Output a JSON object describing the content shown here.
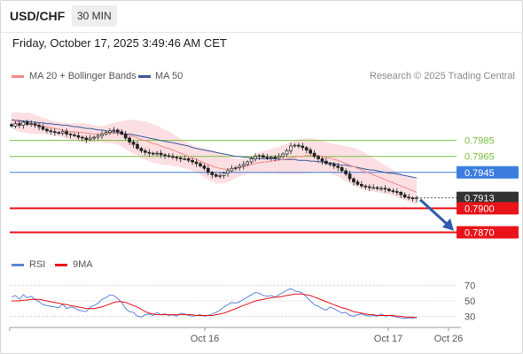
{
  "header": {
    "pair": "USD/CHF",
    "timeframe": "30 MIN",
    "date": "Friday, October 17, 2025 3:49:46 AM CET"
  },
  "legend": {
    "ma20_label": "MA 20 + Bollinger Bands",
    "ma50_label": "MA 50",
    "rsi_label": "RSI",
    "ma9_label": "9MA",
    "copyright": "Research © 2025 Trading Central"
  },
  "colors": {
    "ma20": "#f28c8c",
    "ma50": "#3d5a99",
    "band": "#fcd9dd",
    "resistance": "#7ac142",
    "pivot": "#3d7de0",
    "support": "#e8141a",
    "arrow": "#2f5ba8",
    "rsi": "#5b85d8",
    "rsi_ma": "#e8141a"
  },
  "chart_data": [
    {
      "type": "candlestick",
      "ylim": [
        0.7845,
        0.805
      ],
      "levels": [
        {
          "label": "0.7985",
          "value": 0.7985,
          "kind": "resistance"
        },
        {
          "label": "0.7965",
          "value": 0.7965,
          "kind": "resistance"
        },
        {
          "label": "0.7945",
          "value": 0.7945,
          "kind": "pivot"
        },
        {
          "label": "0.7913",
          "value": 0.7913,
          "kind": "last"
        },
        {
          "label": "0.7900",
          "value": 0.79,
          "kind": "support"
        },
        {
          "label": "0.7870",
          "value": 0.787,
          "kind": "support"
        }
      ],
      "x_ticks": [
        "Oct 16",
        "Oct 17",
        "Oct 26"
      ],
      "closes": [
        0.8003,
        0.8006,
        0.8004,
        0.8008,
        0.8005,
        0.8006,
        0.8004,
        0.8002,
        0.7999,
        0.7997,
        0.7996,
        0.7995,
        0.7994,
        0.7996,
        0.7993,
        0.7992,
        0.7991,
        0.7989,
        0.7988,
        0.7986,
        0.7988,
        0.7989,
        0.7991,
        0.7993,
        0.7995,
        0.7997,
        0.7998,
        0.7996,
        0.7993,
        0.7988,
        0.7983,
        0.798,
        0.7975,
        0.7972,
        0.797,
        0.7969,
        0.7968,
        0.7969,
        0.7967,
        0.7966,
        0.7965,
        0.7964,
        0.7963,
        0.7962,
        0.7962,
        0.796,
        0.7958,
        0.7956,
        0.7953,
        0.795,
        0.7945,
        0.7942,
        0.794,
        0.7941,
        0.7944,
        0.7947,
        0.795,
        0.7951,
        0.7953,
        0.7955,
        0.7958,
        0.7962,
        0.7965,
        0.7966,
        0.7964,
        0.7963,
        0.7964,
        0.7963,
        0.7965,
        0.7968,
        0.7972,
        0.7978,
        0.7979,
        0.7978,
        0.7976,
        0.7973,
        0.7969,
        0.7965,
        0.7962,
        0.7959,
        0.7956,
        0.7955,
        0.7953,
        0.7951,
        0.7947,
        0.7943,
        0.7937,
        0.7933,
        0.793,
        0.7928,
        0.7927,
        0.7926,
        0.7926,
        0.7925,
        0.7925,
        0.7924,
        0.7922,
        0.7921,
        0.792,
        0.7917,
        0.7914,
        0.7913,
        0.7912,
        0.7913
      ],
      "ma20": [
        0.801,
        0.8009,
        0.8008,
        0.8007,
        0.8007,
        0.8006,
        0.8005,
        0.8004,
        0.8003,
        0.8002,
        0.8001,
        0.8,
        0.7999,
        0.7998,
        0.7997,
        0.7996,
        0.7996,
        0.7995,
        0.7995,
        0.7994,
        0.7994,
        0.7993,
        0.7993,
        0.7993,
        0.7993,
        0.7994,
        0.7994,
        0.7994,
        0.7993,
        0.7992,
        0.7991,
        0.799,
        0.7988,
        0.7986,
        0.7985,
        0.7983,
        0.7981,
        0.798,
        0.7978,
        0.7976,
        0.7975,
        0.7973,
        0.7971,
        0.7969,
        0.7967,
        0.7965,
        0.7963,
        0.7961,
        0.7959,
        0.7957,
        0.7955,
        0.7953,
        0.7951,
        0.795,
        0.7949,
        0.7949,
        0.7949,
        0.795,
        0.7951,
        0.7952,
        0.7953,
        0.7955,
        0.7956,
        0.7957,
        0.7958,
        0.7958,
        0.7959,
        0.796,
        0.796,
        0.7961,
        0.7962,
        0.7963,
        0.7964,
        0.7965,
        0.7965,
        0.7966,
        0.7966,
        0.7966,
        0.7966,
        0.7965,
        0.7964,
        0.7963,
        0.7961,
        0.796,
        0.7958,
        0.7956,
        0.7954,
        0.7952,
        0.795,
        0.7948,
        0.7946,
        0.7944,
        0.7942,
        0.794,
        0.7938,
        0.7936,
        0.7934,
        0.7932,
        0.793,
        0.7928,
        0.7926,
        0.7924,
        0.7922,
        0.792
      ],
      "ma50": [
        0.8011,
        0.801,
        0.801,
        0.8009,
        0.8009,
        0.8008,
        0.8008,
        0.8007,
        0.8007,
        0.8006,
        0.8006,
        0.8005,
        0.8005,
        0.8004,
        0.8004,
        0.8003,
        0.8002,
        0.8002,
        0.8001,
        0.8,
        0.8,
        0.7999,
        0.7998,
        0.7998,
        0.7997,
        0.7996,
        0.7996,
        0.7995,
        0.7994,
        0.7993,
        0.7993,
        0.7992,
        0.7991,
        0.799,
        0.7989,
        0.7988,
        0.7987,
        0.7986,
        0.7985,
        0.7984,
        0.7983,
        0.7982,
        0.7981,
        0.798,
        0.7979,
        0.7978,
        0.7976,
        0.7975,
        0.7974,
        0.7973,
        0.7972,
        0.7971,
        0.797,
        0.7969,
        0.7968,
        0.7967,
        0.7966,
        0.7965,
        0.7965,
        0.7964,
        0.7964,
        0.7963,
        0.7963,
        0.7962,
        0.7962,
        0.7962,
        0.7962,
        0.7962,
        0.7961,
        0.7961,
        0.7961,
        0.7961,
        0.7961,
        0.796,
        0.796,
        0.796,
        0.7959,
        0.7959,
        0.7958,
        0.7958,
        0.7957,
        0.7957,
        0.7956,
        0.7955,
        0.7954,
        0.7954,
        0.7953,
        0.7952,
        0.7951,
        0.795,
        0.7949,
        0.7948,
        0.7948,
        0.7947,
        0.7946,
        0.7945,
        0.7944,
        0.7944,
        0.7943,
        0.7942,
        0.7941,
        0.794,
        0.7939,
        0.7938
      ],
      "band_width": [
        0.001,
        0.0011,
        0.0012,
        0.0012,
        0.0013,
        0.0013,
        0.0012,
        0.0011,
        0.001,
        0.001,
        0.0009,
        0.0009,
        0.0009,
        0.0009,
        0.001,
        0.001,
        0.0011,
        0.0011,
        0.0012,
        0.0012,
        0.0011,
        0.0011,
        0.001,
        0.001,
        0.0011,
        0.0012,
        0.0013,
        0.0014,
        0.0016,
        0.0018,
        0.002,
        0.0021,
        0.0022,
        0.0023,
        0.0024,
        0.0024,
        0.0024,
        0.0024,
        0.0023,
        0.0022,
        0.0021,
        0.002,
        0.0019,
        0.0018,
        0.0017,
        0.0016,
        0.0016,
        0.0016,
        0.0017,
        0.0018,
        0.0019,
        0.002,
        0.002,
        0.0019,
        0.0018,
        0.0016,
        0.0014,
        0.0012,
        0.0011,
        0.001,
        0.001,
        0.0011,
        0.0012,
        0.0013,
        0.0014,
        0.0015,
        0.0015,
        0.0016,
        0.0017,
        0.0018,
        0.0019,
        0.002,
        0.0021,
        0.0022,
        0.0022,
        0.0022,
        0.0022,
        0.0021,
        0.002,
        0.002,
        0.0019,
        0.0019,
        0.0019,
        0.002,
        0.0021,
        0.0022,
        0.0023,
        0.0024,
        0.0024,
        0.0024,
        0.0023,
        0.0022,
        0.0021,
        0.002,
        0.0019,
        0.0018,
        0.0017,
        0.0016,
        0.0016,
        0.0016,
        0.0016,
        0.0016,
        0.0016,
        0.0016
      ]
    },
    {
      "type": "line",
      "name": "RSI",
      "y_ticks": [
        70,
        50,
        30
      ],
      "ylim": [
        20,
        80
      ],
      "rsi": [
        55,
        57,
        52,
        58,
        54,
        56,
        52,
        49,
        45,
        44,
        43,
        42,
        41,
        46,
        40,
        42,
        41,
        38,
        37,
        36,
        42,
        44,
        47,
        52,
        54,
        58,
        57,
        53,
        48,
        40,
        36,
        35,
        30,
        29,
        32,
        33,
        31,
        35,
        32,
        33,
        31,
        32,
        30,
        34,
        33,
        31,
        30,
        31,
        32,
        30,
        31,
        33,
        35,
        38,
        42,
        45,
        48,
        47,
        49,
        52,
        55,
        58,
        61,
        60,
        57,
        56,
        57,
        55,
        58,
        61,
        64,
        66,
        63,
        62,
        60,
        55,
        50,
        45,
        43,
        40,
        38,
        42,
        40,
        37,
        34,
        35,
        31,
        30,
        32,
        33,
        31,
        30,
        31,
        30,
        33,
        30,
        31,
        30,
        29,
        28,
        27,
        28,
        27,
        29
      ],
      "rsi_ma": [
        50,
        50,
        50,
        51,
        51,
        52,
        52,
        52,
        51,
        50,
        49,
        48,
        47,
        46,
        45,
        44,
        43,
        42,
        41,
        40,
        40,
        40,
        41,
        42,
        44,
        46,
        48,
        49,
        49,
        48,
        46,
        44,
        42,
        39,
        36,
        34,
        33,
        32,
        32,
        32,
        32,
        32,
        32,
        32,
        32,
        32,
        32,
        31,
        31,
        31,
        31,
        31,
        32,
        33,
        34,
        36,
        38,
        40,
        42,
        44,
        46,
        48,
        50,
        51,
        52,
        53,
        54,
        55,
        55,
        56,
        57,
        58,
        59,
        59,
        59,
        58,
        57,
        55,
        53,
        51,
        49,
        47,
        45,
        43,
        41,
        40,
        38,
        36,
        35,
        34,
        33,
        32,
        32,
        31,
        31,
        31,
        31,
        31,
        30,
        30,
        29,
        29,
        29,
        28
      ]
    }
  ]
}
